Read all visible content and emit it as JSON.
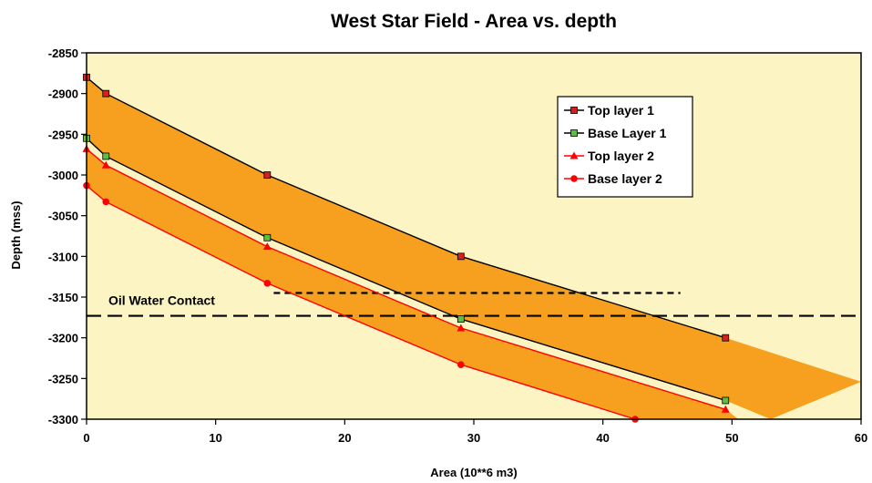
{
  "chart_data": {
    "type": "line",
    "title": "West Star Field -  Area vs. depth",
    "xlabel": "Area (10**6 m3)",
    "ylabel": "Depth (mss)",
    "xlim": [
      0,
      60
    ],
    "ylim": [
      -3300,
      -2850
    ],
    "x_ticks": [
      "0",
      "10",
      "20",
      "30",
      "40",
      "50",
      "60"
    ],
    "y_ticks": [
      "-2850",
      "-2900",
      "-2950",
      "-3000",
      "-3050",
      "-3100",
      "-3150",
      "-3200",
      "-3250",
      "-3300"
    ],
    "grid": false,
    "legend_position": "top-right",
    "series": [
      {
        "name": "Top layer 1",
        "marker": "square",
        "color": "#000000",
        "marker_color": "#d42020",
        "points": [
          [
            0,
            -2880
          ],
          [
            1.5,
            -2900
          ],
          [
            14,
            -3000
          ],
          [
            29,
            -3100
          ],
          [
            49.5,
            -3200
          ]
        ]
      },
      {
        "name": "Base Layer 1",
        "marker": "square",
        "color": "#000000",
        "marker_color": "#5fbf3c",
        "points": [
          [
            0,
            -2955
          ],
          [
            1.5,
            -2977
          ],
          [
            14,
            -3077
          ],
          [
            29,
            -3177
          ],
          [
            49.5,
            -3277
          ]
        ]
      },
      {
        "name": "Top layer 2",
        "marker": "triangle",
        "color": "#ff0000",
        "marker_color": "#ff0000",
        "points": [
          [
            0,
            -2968
          ],
          [
            1.5,
            -2988
          ],
          [
            14,
            -3088
          ],
          [
            29,
            -3188
          ],
          [
            49.5,
            -3288
          ]
        ]
      },
      {
        "name": "Base layer 2",
        "marker": "circle",
        "color": "#ff0000",
        "marker_color": "#ff0000",
        "points": [
          [
            0,
            -3013
          ],
          [
            1.5,
            -3033
          ],
          [
            14,
            -3133
          ],
          [
            29,
            -3233
          ],
          [
            42.5,
            -3300
          ]
        ]
      }
    ],
    "bands": [
      {
        "color": "#f7a020",
        "upper": [
          [
            0,
            -2880
          ],
          [
            1.5,
            -2900
          ],
          [
            14,
            -3000
          ],
          [
            29,
            -3100
          ],
          [
            49.5,
            -3200
          ],
          [
            60,
            -3254
          ]
        ],
        "lower": [
          [
            0,
            -2955
          ],
          [
            1.5,
            -2977
          ],
          [
            14,
            -3077
          ],
          [
            29,
            -3177
          ],
          [
            49.5,
            -3277
          ],
          [
            53,
            -3300
          ]
        ]
      },
      {
        "color": "#f7a020",
        "upper": [
          [
            0,
            -2968
          ],
          [
            1.5,
            -2988
          ],
          [
            14,
            -3088
          ],
          [
            29,
            -3188
          ],
          [
            49.5,
            -3288
          ],
          [
            50.5,
            -3300
          ]
        ],
        "lower": [
          [
            0,
            -3013
          ],
          [
            1.5,
            -3033
          ],
          [
            14,
            -3133
          ],
          [
            29,
            -3233
          ],
          [
            42.5,
            -3300
          ]
        ]
      }
    ],
    "reference_lines": [
      {
        "y": -3173,
        "x_range": [
          0,
          60
        ],
        "style": "long-dash",
        "label": "Oil Water Contact"
      },
      {
        "y": -3145,
        "x_range": [
          14.5,
          46
        ],
        "style": "short-dash"
      }
    ],
    "colors": {
      "plot_background": "#fcf5c3",
      "band": "#f7a020"
    }
  }
}
